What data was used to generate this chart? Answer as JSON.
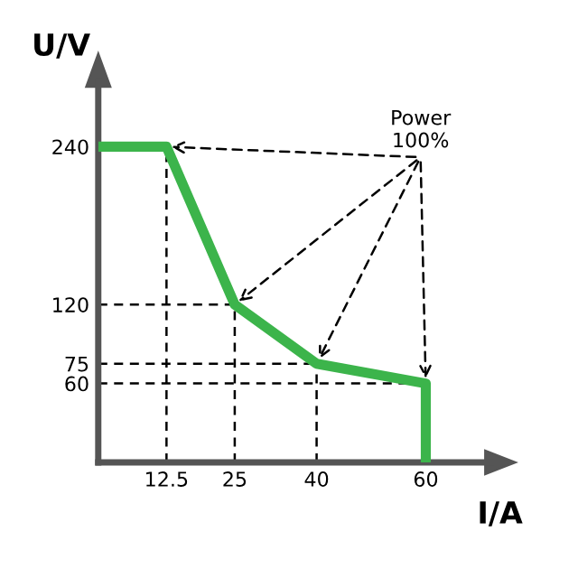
{
  "chart_data": {
    "type": "line",
    "xlabel": "I/A",
    "ylabel": "U/V",
    "x": [
      0,
      12.5,
      25,
      40,
      60,
      60
    ],
    "series": [
      {
        "color": "#3cb44b",
        "values": [
          240,
          240,
          120,
          75,
          60,
          0
        ]
      }
    ],
    "xlim": [
      0,
      72
    ],
    "ylim": [
      0,
      290
    ],
    "xticks": [
      12.5,
      25,
      40,
      60
    ],
    "yticks": [
      60,
      75,
      120,
      240
    ],
    "annotations": [
      "Power\n100%"
    ],
    "grid": false,
    "legend": false,
    "ref_lines": [
      {
        "axis": "x",
        "value": 12.5,
        "line_style": "dashed",
        "color": "#000000"
      },
      {
        "axis": "x",
        "value": 25,
        "line_style": "dashed",
        "color": "#000000"
      },
      {
        "axis": "x",
        "value": 40,
        "line_style": "dashed",
        "color": "#000000"
      },
      {
        "axis": "y",
        "value": 120,
        "line_style": "dashed",
        "color": "#000000"
      },
      {
        "axis": "y",
        "value": 75,
        "line_style": "dashed",
        "color": "#000000"
      },
      {
        "axis": "y",
        "value": 60,
        "line_style": "dashed",
        "color": "#000000"
      }
    ]
  }
}
